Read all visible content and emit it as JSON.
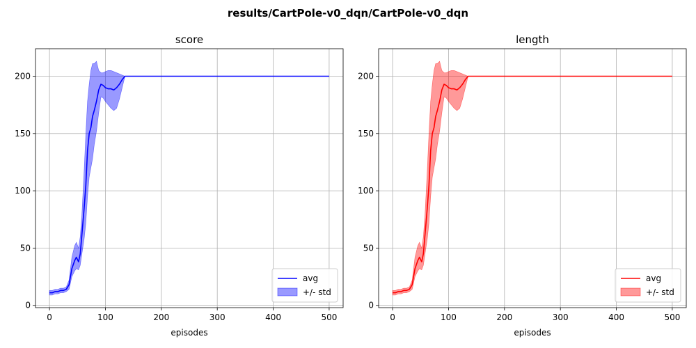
{
  "figure": {
    "suptitle": "results/CartPole-v0_dqn/CartPole-v0_dqn"
  },
  "chart_data": [
    {
      "type": "line",
      "title": "score",
      "xlabel": "episodes",
      "ylabel": "",
      "xlim": [
        -25,
        525
      ],
      "ylim": [
        -2,
        224
      ],
      "xticks": [
        0,
        100,
        200,
        300,
        400,
        500
      ],
      "yticks": [
        0,
        50,
        100,
        150,
        200
      ],
      "grid": true,
      "legend_position": "lower-right",
      "color": "#0000ff",
      "fill_color": "#0000ff",
      "fill_opacity": 0.4,
      "series": [
        {
          "name": "avg",
          "x": [
            0,
            5,
            10,
            15,
            20,
            25,
            30,
            35,
            40,
            45,
            48,
            52,
            55,
            58,
            62,
            65,
            68,
            71,
            74,
            77,
            80,
            84,
            88,
            92,
            96,
            100,
            105,
            110,
            115,
            120,
            125,
            130,
            135,
            140,
            200,
            300,
            400,
            500
          ],
          "y": [
            11,
            11,
            12,
            12,
            13,
            13,
            14,
            18,
            32,
            39,
            42,
            38,
            45,
            62,
            85,
            105,
            135,
            150,
            155,
            165,
            170,
            178,
            188,
            193,
            192,
            190,
            189,
            189,
            188,
            190,
            193,
            197,
            200,
            200,
            200,
            200,
            200,
            200
          ]
        },
        {
          "name": "+/- std",
          "x": [
            0,
            5,
            10,
            15,
            20,
            25,
            30,
            35,
            40,
            45,
            48,
            52,
            55,
            58,
            62,
            65,
            68,
            71,
            74,
            77,
            80,
            84,
            88,
            92,
            96,
            100,
            105,
            110,
            115,
            120,
            125,
            130,
            135,
            140,
            200,
            300,
            400,
            500
          ],
          "upper": [
            13,
            13,
            14,
            14,
            15,
            15,
            16,
            22,
            42,
            52,
            55,
            50,
            60,
            80,
            118,
            150,
            178,
            193,
            205,
            211,
            211,
            213,
            205,
            203,
            203,
            204,
            205,
            205,
            204,
            203,
            202,
            201,
            200,
            200,
            200,
            200,
            200,
            200
          ],
          "lower": [
            9,
            9,
            10,
            10,
            11,
            11,
            12,
            14,
            25,
            30,
            32,
            31,
            35,
            45,
            58,
            72,
            95,
            112,
            120,
            128,
            140,
            152,
            168,
            182,
            181,
            178,
            175,
            172,
            170,
            172,
            180,
            190,
            200,
            200,
            200,
            200,
            200,
            200
          ]
        }
      ]
    },
    {
      "type": "line",
      "title": "length",
      "xlabel": "episodes",
      "ylabel": "",
      "xlim": [
        -25,
        525
      ],
      "ylim": [
        -2,
        224
      ],
      "xticks": [
        0,
        100,
        200,
        300,
        400,
        500
      ],
      "yticks": [
        0,
        50,
        100,
        150,
        200
      ],
      "grid": true,
      "legend_position": "lower-right",
      "color": "#ff0000",
      "fill_color": "#ff0000",
      "fill_opacity": 0.4,
      "series": [
        {
          "name": "avg",
          "x": [
            0,
            5,
            10,
            15,
            20,
            25,
            30,
            35,
            40,
            45,
            48,
            52,
            55,
            58,
            62,
            65,
            68,
            71,
            74,
            77,
            80,
            84,
            88,
            92,
            96,
            100,
            105,
            110,
            115,
            120,
            125,
            130,
            135,
            140,
            200,
            300,
            400,
            500
          ],
          "y": [
            11,
            11,
            12,
            12,
            13,
            13,
            14,
            18,
            32,
            39,
            42,
            38,
            45,
            62,
            85,
            105,
            135,
            150,
            155,
            165,
            170,
            178,
            188,
            193,
            192,
            190,
            189,
            189,
            188,
            190,
            193,
            197,
            200,
            200,
            200,
            200,
            200,
            200
          ]
        },
        {
          "name": "+/- std",
          "x": [
            0,
            5,
            10,
            15,
            20,
            25,
            30,
            35,
            40,
            45,
            48,
            52,
            55,
            58,
            62,
            65,
            68,
            71,
            74,
            77,
            80,
            84,
            88,
            92,
            96,
            100,
            105,
            110,
            115,
            120,
            125,
            130,
            135,
            140,
            200,
            300,
            400,
            500
          ],
          "upper": [
            13,
            13,
            14,
            14,
            15,
            15,
            16,
            22,
            42,
            52,
            55,
            50,
            60,
            80,
            118,
            150,
            178,
            193,
            205,
            211,
            211,
            213,
            205,
            203,
            203,
            204,
            205,
            205,
            204,
            203,
            202,
            201,
            200,
            200,
            200,
            200,
            200,
            200
          ],
          "lower": [
            9,
            9,
            10,
            10,
            11,
            11,
            12,
            14,
            25,
            30,
            32,
            31,
            35,
            45,
            58,
            72,
            95,
            112,
            120,
            128,
            140,
            152,
            168,
            182,
            181,
            178,
            175,
            172,
            170,
            172,
            180,
            190,
            200,
            200,
            200,
            200,
            200,
            200
          ]
        }
      ]
    }
  ]
}
